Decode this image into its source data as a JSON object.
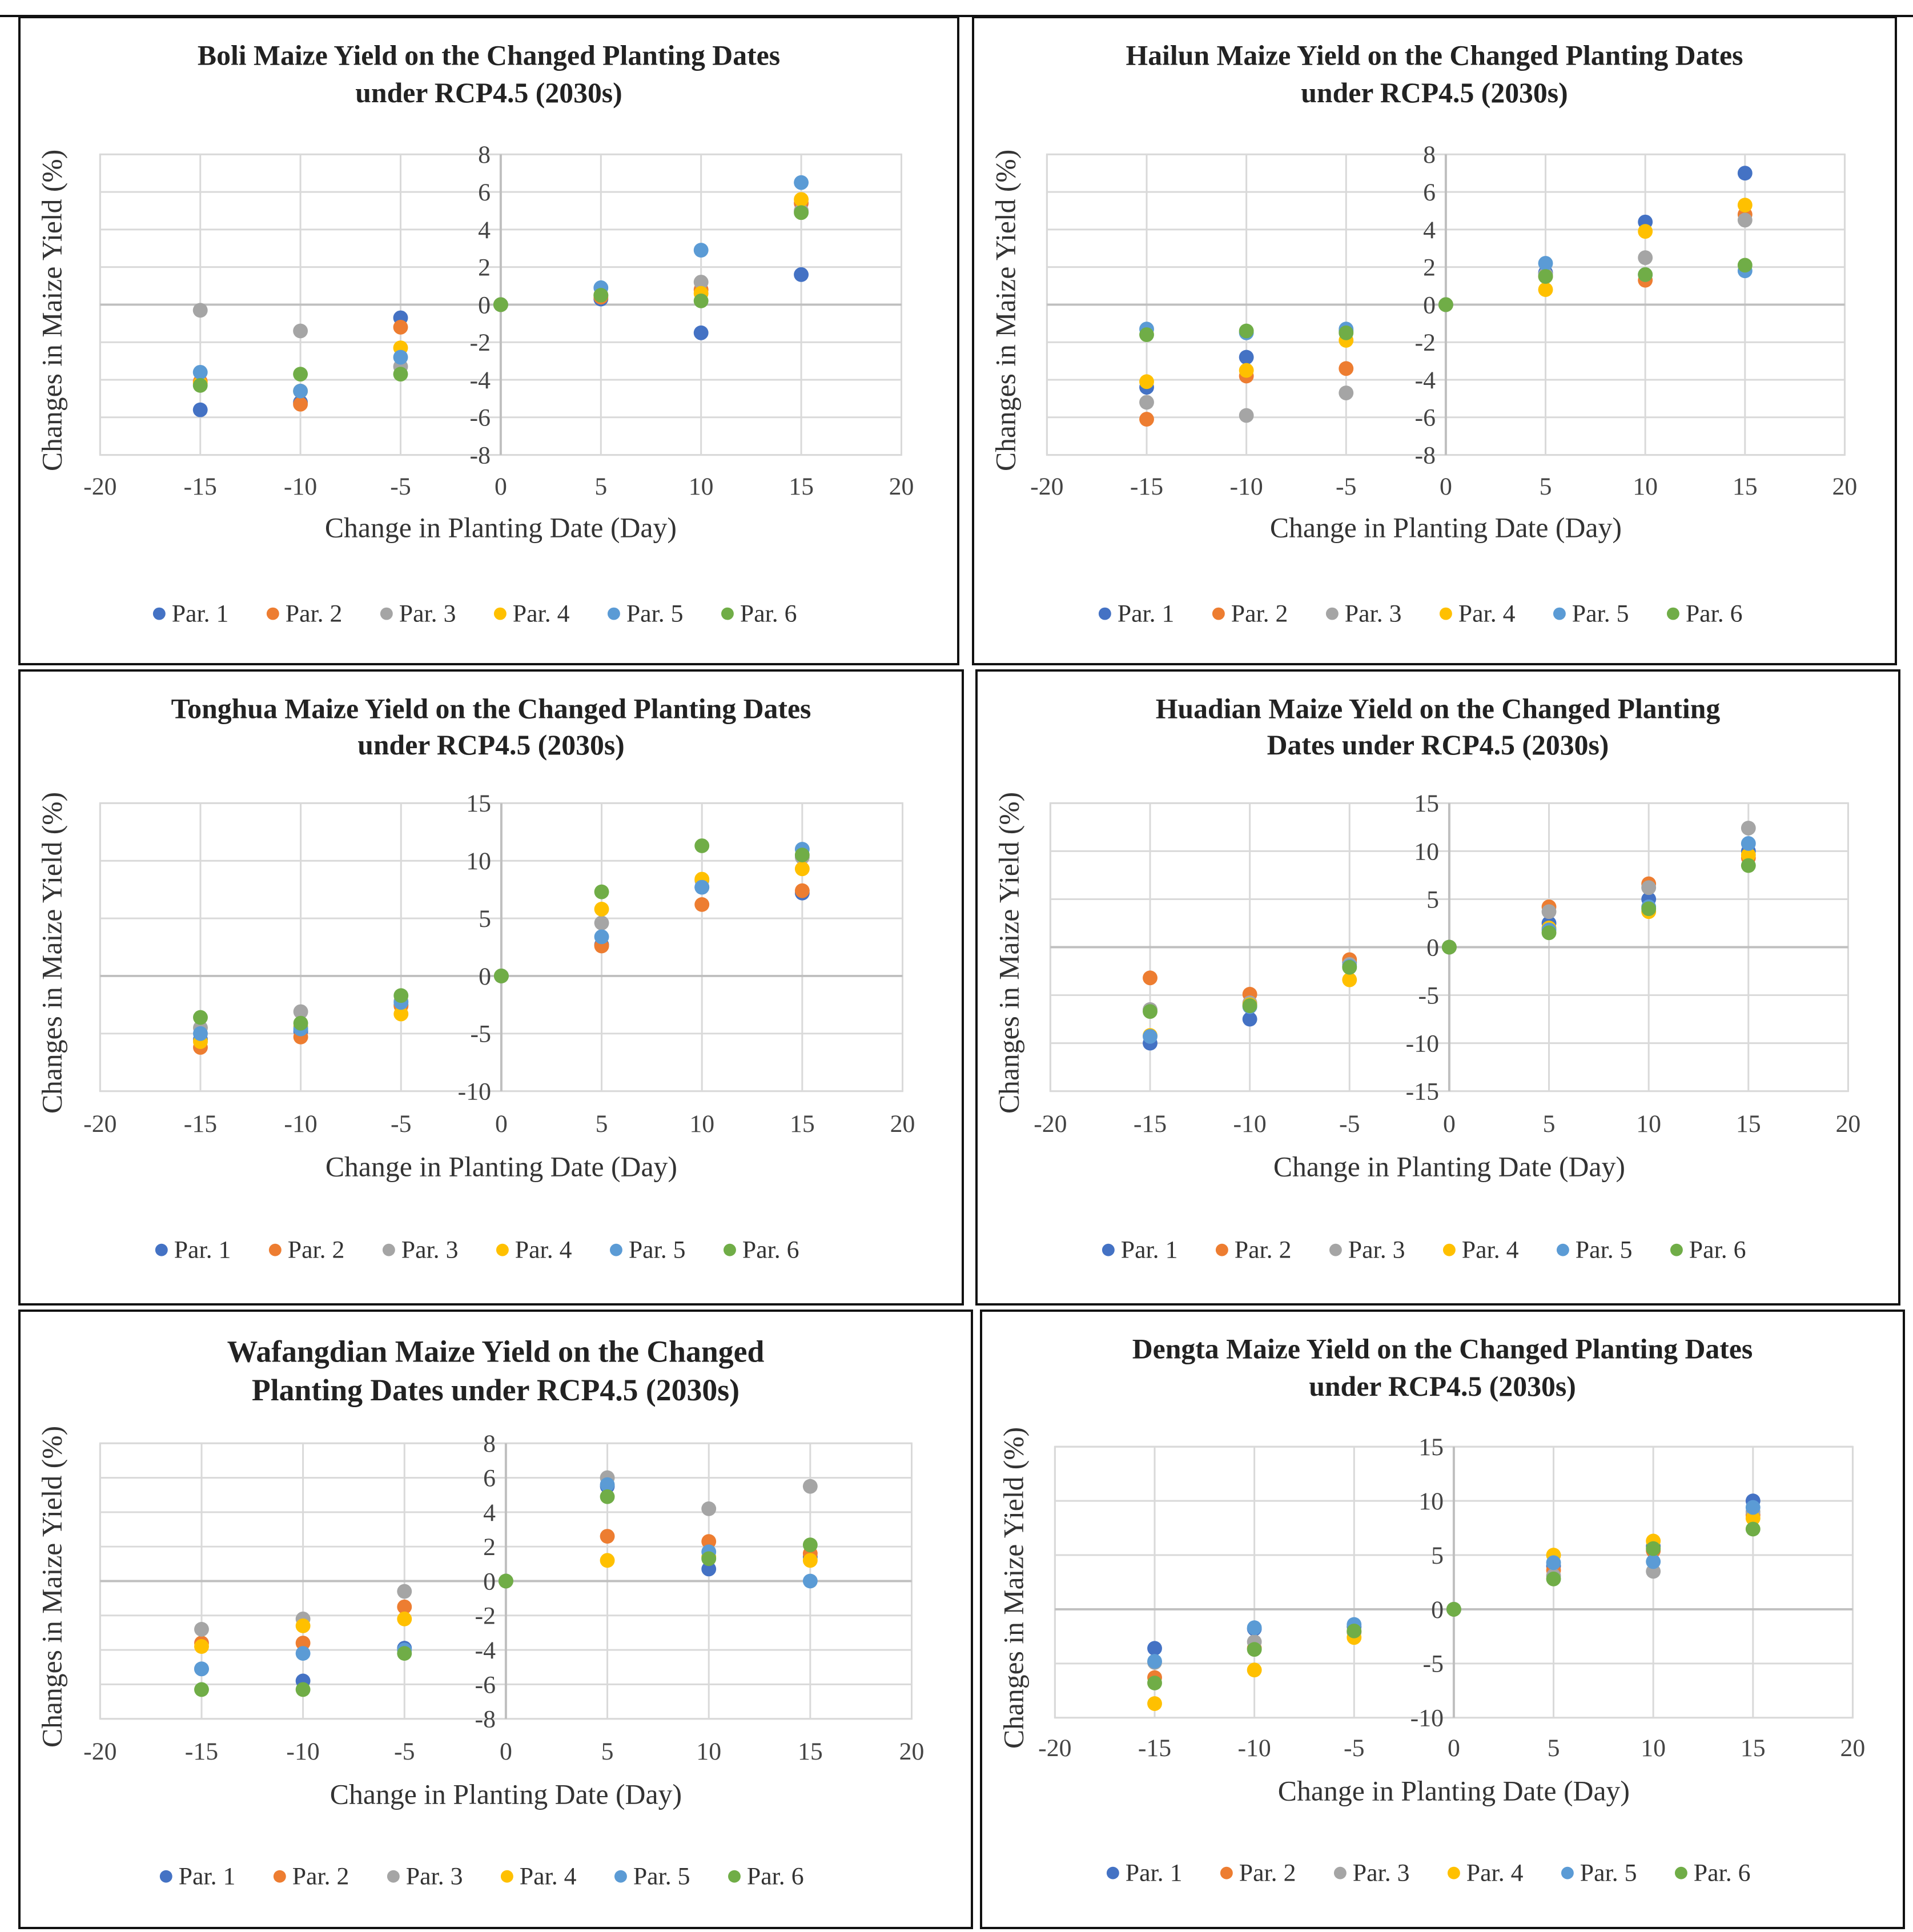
{
  "colors": {
    "Par. 1": "#4472C4",
    "Par. 2": "#ED7D31",
    "Par. 3": "#A5A5A5",
    "Par. 4": "#FFC000",
    "Par. 5": "#5B9BD5",
    "Par. 6": "#70AD47"
  },
  "chart_data": [
    {
      "type": "scatter",
      "title": [
        "Boli Maize Yield on the Changed Planting Dates",
        "under RCP4.5 (2030s)"
      ],
      "xlabel": "Change in Planting Date (Day)",
      "ylabel": "Changes in Maize Yield (%)",
      "xlim": [
        -20,
        20
      ],
      "xticks": [
        -20,
        -15,
        -10,
        -5,
        0,
        5,
        10,
        15,
        20
      ],
      "ylim": [
        -8,
        8
      ],
      "yticks": [
        -8,
        -6,
        -4,
        -2,
        0,
        2,
        4,
        6,
        8
      ],
      "x": [
        -15,
        -10,
        -5,
        0,
        5,
        10,
        15
      ],
      "series": [
        {
          "name": "Par. 1",
          "values": [
            -5.6,
            -5.2,
            -0.7,
            0,
            0.3,
            -1.5,
            1.6
          ]
        },
        {
          "name": "Par. 2",
          "values": [
            -4.1,
            -5.3,
            -1.2,
            0,
            0.4,
            0.8,
            5.4
          ]
        },
        {
          "name": "Par. 3",
          "values": [
            -0.3,
            -1.4,
            -3.3,
            0,
            0.5,
            1.2,
            5.0
          ]
        },
        {
          "name": "Par. 4",
          "values": [
            -4.2,
            -4.6,
            -2.3,
            0,
            0.5,
            0.6,
            5.6
          ]
        },
        {
          "name": "Par. 5",
          "values": [
            -3.6,
            -4.6,
            -2.8,
            0,
            0.9,
            2.9,
            6.5
          ]
        },
        {
          "name": "Par. 6",
          "values": [
            -4.3,
            -3.7,
            -3.7,
            0,
            0.5,
            0.2,
            4.9
          ]
        }
      ]
    },
    {
      "type": "scatter",
      "title": [
        "Hailun Maize Yield on the Changed Planting Dates",
        "under RCP4.5 (2030s)"
      ],
      "xlabel": "Change in Planting Date (Day)",
      "ylabel": "Changes in Maize Yield (%)",
      "xlim": [
        -20,
        20
      ],
      "xticks": [
        -20,
        -15,
        -10,
        -5,
        0,
        5,
        10,
        15,
        20
      ],
      "ylim": [
        -8,
        8
      ],
      "yticks": [
        -8,
        -6,
        -4,
        -2,
        0,
        2,
        4,
        6,
        8
      ],
      "x": [
        -15,
        -10,
        -5,
        0,
        5,
        10,
        15
      ],
      "series": [
        {
          "name": "Par. 1",
          "values": [
            -4.4,
            -2.8,
            -1.4,
            0,
            1.7,
            4.4,
            7.0
          ]
        },
        {
          "name": "Par. 2",
          "values": [
            -6.1,
            -3.8,
            -3.4,
            0,
            1.5,
            1.3,
            4.8
          ]
        },
        {
          "name": "Par. 3",
          "values": [
            -5.2,
            -5.9,
            -4.7,
            0,
            1.6,
            2.5,
            4.5
          ]
        },
        {
          "name": "Par. 4",
          "values": [
            -4.1,
            -3.5,
            -1.9,
            0,
            0.8,
            3.9,
            5.3
          ]
        },
        {
          "name": "Par. 5",
          "values": [
            -1.3,
            -1.5,
            -1.3,
            0,
            2.2,
            1.6,
            1.8
          ]
        },
        {
          "name": "Par. 6",
          "values": [
            -1.6,
            -1.4,
            -1.5,
            0,
            1.5,
            1.6,
            2.1
          ]
        }
      ]
    },
    {
      "type": "scatter",
      "title": [
        "Tonghua Maize Yield on the Changed Planting Dates",
        "under RCP4.5 (2030s)"
      ],
      "xlabel": "Change in Planting Date (Day)",
      "ylabel": "Changes in Maize Yield (%)",
      "xlim": [
        -20,
        20
      ],
      "xticks": [
        -20,
        -15,
        -10,
        -5,
        0,
        5,
        10,
        15,
        20
      ],
      "ylim": [
        -10,
        15
      ],
      "yticks": [
        -10,
        -5,
        0,
        5,
        10,
        15
      ],
      "x": [
        -15,
        -10,
        -5,
        0,
        5,
        10,
        15
      ],
      "series": [
        {
          "name": "Par. 1",
          "values": [
            -5.5,
            -4.8,
            -2.5,
            0,
            2.7,
            7.7,
            7.2
          ]
        },
        {
          "name": "Par. 2",
          "values": [
            -6.2,
            -5.3,
            -2.6,
            0,
            2.6,
            6.2,
            7.4
          ]
        },
        {
          "name": "Par. 3",
          "values": [
            -4.5,
            -3.1,
            -2.2,
            0,
            4.6,
            8.3,
            10.3
          ]
        },
        {
          "name": "Par. 4",
          "values": [
            -5.7,
            -4.4,
            -3.3,
            0,
            5.8,
            8.4,
            9.3
          ]
        },
        {
          "name": "Par. 5",
          "values": [
            -5.0,
            -4.6,
            -2.3,
            0,
            3.4,
            7.7,
            11.0
          ]
        },
        {
          "name": "Par. 6",
          "values": [
            -3.6,
            -4.1,
            -1.7,
            0,
            7.3,
            11.3,
            10.5
          ]
        }
      ]
    },
    {
      "type": "scatter",
      "title": [
        "Huadian Maize Yield on the Changed Planting",
        "Dates under RCP4.5 (2030s)"
      ],
      "xlabel": "Change in Planting Date (Day)",
      "ylabel": "Changes in Maize Yield (%)",
      "xlim": [
        -20,
        20
      ],
      "xticks": [
        -20,
        -15,
        -10,
        -5,
        0,
        5,
        10,
        15,
        20
      ],
      "ylim": [
        -15,
        15
      ],
      "yticks": [
        -15,
        -10,
        -5,
        0,
        5,
        10,
        15
      ],
      "x": [
        -15,
        -10,
        -5,
        0,
        5,
        10,
        15
      ],
      "series": [
        {
          "name": "Par. 1",
          "values": [
            -10.0,
            -7.5,
            -1.6,
            0,
            2.5,
            5.0,
            10.0
          ]
        },
        {
          "name": "Par. 2",
          "values": [
            -3.2,
            -4.9,
            -1.3,
            0,
            4.2,
            6.6,
            9.3
          ]
        },
        {
          "name": "Par. 3",
          "values": [
            -6.5,
            -5.8,
            -1.8,
            0,
            3.7,
            6.2,
            12.4
          ]
        },
        {
          "name": "Par. 4",
          "values": [
            -9.2,
            -6.0,
            -3.4,
            0,
            2.0,
            3.7,
            9.6
          ]
        },
        {
          "name": "Par. 5",
          "values": [
            -9.3,
            -6.2,
            -2.0,
            0,
            1.8,
            4.2,
            10.8
          ]
        },
        {
          "name": "Par. 6",
          "values": [
            -6.7,
            -6.1,
            -2.1,
            0,
            1.5,
            4.0,
            8.5
          ]
        }
      ]
    },
    {
      "type": "scatter",
      "title": [
        "Wafangdian Maize Yield on the Changed",
        "Planting Dates under RCP4.5 (2030s)"
      ],
      "xlabel": "Change in Planting Date (Day)",
      "ylabel": "Changes in Maize Yield (%)",
      "xlim": [
        -20,
        20
      ],
      "xticks": [
        -20,
        -15,
        -10,
        -5,
        0,
        5,
        10,
        15,
        20
      ],
      "ylim": [
        -8,
        8
      ],
      "yticks": [
        -8,
        -6,
        -4,
        -2,
        0,
        2,
        4,
        6,
        8
      ],
      "x": [
        -15,
        -10,
        -5,
        0,
        5,
        10,
        15
      ],
      "series": [
        {
          "name": "Par. 1",
          "values": [
            -5.1,
            -5.8,
            -3.9,
            0,
            5.5,
            0.7,
            1.4
          ]
        },
        {
          "name": "Par. 2",
          "values": [
            -3.6,
            -3.6,
            -1.5,
            0,
            2.6,
            2.3,
            1.6
          ]
        },
        {
          "name": "Par. 3",
          "values": [
            -2.8,
            -2.2,
            -0.6,
            0,
            6.0,
            4.2,
            5.5
          ]
        },
        {
          "name": "Par. 4",
          "values": [
            -3.8,
            -2.6,
            -2.2,
            0,
            1.2,
            1.4,
            1.2
          ]
        },
        {
          "name": "Par. 5",
          "values": [
            -5.1,
            -4.2,
            -4.0,
            0,
            5.6,
            1.7,
            0.0
          ]
        },
        {
          "name": "Par. 6",
          "values": [
            -6.3,
            -6.3,
            -4.2,
            0,
            4.9,
            1.3,
            2.1
          ]
        }
      ]
    },
    {
      "type": "scatter",
      "title": [
        "Dengta Maize Yield on the  Changed Planting Dates",
        "under RCP4.5 (2030s)"
      ],
      "xlabel": "Change in Planting Date (Day)",
      "ylabel": "Changes in Maize Yield (%)",
      "xlim": [
        -20,
        20
      ],
      "xticks": [
        -20,
        -15,
        -10,
        -5,
        0,
        5,
        10,
        15,
        20
      ],
      "ylim": [
        -10,
        15
      ],
      "yticks": [
        -10,
        -5,
        0,
        5,
        10,
        15
      ],
      "x": [
        -15,
        -10,
        -5,
        0,
        5,
        10,
        15
      ],
      "series": [
        {
          "name": "Par. 1",
          "values": [
            -3.6,
            -1.8,
            -1.6,
            0,
            4.0,
            5.8,
            10.0
          ]
        },
        {
          "name": "Par. 2",
          "values": [
            -6.3,
            -3.6,
            -2.1,
            0,
            3.6,
            5.4,
            8.7
          ]
        },
        {
          "name": "Par. 3",
          "values": [
            -4.9,
            -3.0,
            -2.1,
            0,
            3.1,
            3.5,
            9.0
          ]
        },
        {
          "name": "Par. 4",
          "values": [
            -8.7,
            -5.6,
            -2.6,
            0,
            5.0,
            6.3,
            8.4
          ]
        },
        {
          "name": "Par. 5",
          "values": [
            -4.8,
            -1.7,
            -1.4,
            0,
            4.3,
            4.4,
            9.4
          ]
        },
        {
          "name": "Par. 6",
          "values": [
            -6.8,
            -3.7,
            -2.0,
            0,
            2.8,
            5.6,
            7.4
          ]
        }
      ]
    }
  ]
}
